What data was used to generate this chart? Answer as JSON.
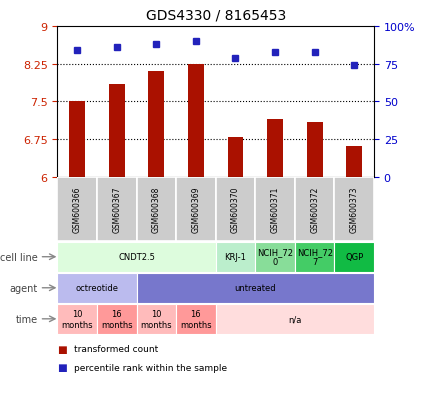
{
  "title": "GDS4330 / 8165453",
  "samples": [
    "GSM600366",
    "GSM600367",
    "GSM600368",
    "GSM600369",
    "GSM600370",
    "GSM600371",
    "GSM600372",
    "GSM600373"
  ],
  "bar_values": [
    7.5,
    7.85,
    8.1,
    8.25,
    6.8,
    7.15,
    7.1,
    6.62
  ],
  "scatter_values": [
    84,
    86,
    88,
    90,
    79,
    83,
    83,
    74
  ],
  "ylim_left": [
    6,
    9
  ],
  "ylim_right": [
    0,
    100
  ],
  "yticks_left": [
    6,
    6.75,
    7.5,
    8.25,
    9
  ],
  "ytick_labels_left": [
    "6",
    "6.75",
    "7.5",
    "8.25",
    "9"
  ],
  "yticks_right": [
    0,
    25,
    50,
    75,
    100
  ],
  "ytick_labels_right": [
    "0",
    "25",
    "50",
    "75",
    "100%"
  ],
  "bar_color": "#aa1100",
  "scatter_color": "#2222bb",
  "grid_color": "#666666",
  "cell_line_groups": [
    {
      "text": "CNDT2.5",
      "span": [
        0,
        4
      ],
      "color": "#ddfcdd"
    },
    {
      "text": "KRJ-1",
      "span": [
        4,
        5
      ],
      "color": "#bbeecc"
    },
    {
      "text": "NCIH_72\n0",
      "span": [
        5,
        6
      ],
      "color": "#88dd99"
    },
    {
      "text": "NCIH_72\n7",
      "span": [
        6,
        7
      ],
      "color": "#44cc66"
    },
    {
      "text": "QGP",
      "span": [
        7,
        8
      ],
      "color": "#11bb44"
    }
  ],
  "agent_groups": [
    {
      "text": "octreotide",
      "span": [
        0,
        2
      ],
      "color": "#bbbbee"
    },
    {
      "text": "untreated",
      "span": [
        2,
        8
      ],
      "color": "#7777cc"
    }
  ],
  "time_groups": [
    {
      "text": "10\nmonths",
      "span": [
        0,
        1
      ],
      "color": "#ffbbbb"
    },
    {
      "text": "16\nmonths",
      "span": [
        1,
        2
      ],
      "color": "#ff9999"
    },
    {
      "text": "10\nmonths",
      "span": [
        2,
        3
      ],
      "color": "#ffbbbb"
    },
    {
      "text": "16\nmonths",
      "span": [
        3,
        4
      ],
      "color": "#ff9999"
    },
    {
      "text": "n/a",
      "span": [
        4,
        8
      ],
      "color": "#ffdddd"
    }
  ],
  "sample_bg_color": "#cccccc",
  "row_labels": [
    "cell line",
    "agent",
    "time"
  ],
  "legend": [
    {
      "label": "transformed count",
      "color": "#aa1100"
    },
    {
      "label": "percentile rank within the sample",
      "color": "#2222bb"
    }
  ]
}
